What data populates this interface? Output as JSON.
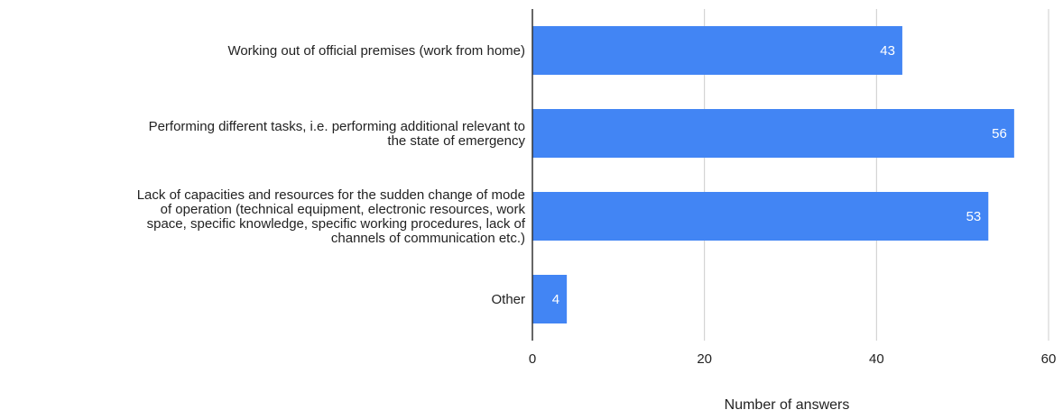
{
  "chart_data": {
    "type": "bar",
    "orientation": "horizontal",
    "title": "",
    "xlabel": "Number of answers",
    "ylabel": "",
    "categories": [
      [
        "Working out of official premises (work from home)"
      ],
      [
        "Performing different tasks, i.e. performing additional relevant to",
        "the state of emergency"
      ],
      [
        "Lack of capacities and resources for the sudden change of mode",
        "of operation (technical equipment, electronic resources, work",
        "space, specific knowledge, specific working procedures, lack of",
        "channels of communication etc.)"
      ],
      [
        "Other"
      ]
    ],
    "values": [
      43,
      56,
      53,
      4
    ],
    "value_labels": [
      "43",
      "56",
      "53",
      "4"
    ],
    "xlim": [
      0,
      60
    ],
    "xticks": [
      0,
      20,
      40,
      60
    ],
    "xtick_labels": [
      "0",
      "20",
      "40",
      "60"
    ],
    "grid": true,
    "legend": "none",
    "colors": {
      "bar": "#4285f4",
      "bar_label": "#ffffff",
      "grid": "#cccccc",
      "axis": "#333333",
      "text": "#222222"
    }
  }
}
